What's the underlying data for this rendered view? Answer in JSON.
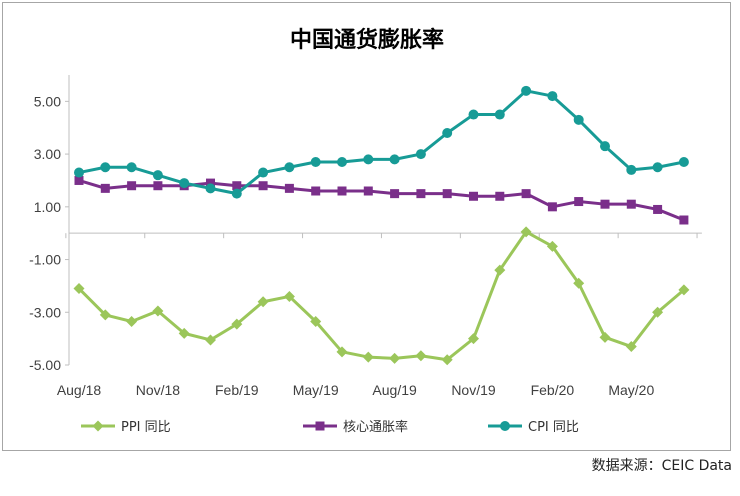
{
  "source": "数据来源：CEIC Data",
  "chart_data": {
    "type": "line",
    "title": "中国通货膨胀率",
    "xlabel": "",
    "ylabel": "",
    "ylim": [
      -5,
      6
    ],
    "yticks": [
      5,
      3,
      1,
      -1,
      -3,
      -5
    ],
    "ytick_labels": [
      "5.00",
      "3.00",
      "1.00",
      "-1.00",
      "-3.00",
      "-5.00"
    ],
    "xtick_labels": [
      "Aug/18",
      "Nov/18",
      "Feb/19",
      "May/19",
      "Aug/19",
      "Nov/19",
      "Feb/20",
      "May/20"
    ],
    "x": [
      "Aug/18",
      "Sep/18",
      "Oct/18",
      "Nov/18",
      "Dec/18",
      "Jan/19",
      "Feb/19",
      "Mar/19",
      "Apr/19",
      "May/19",
      "Jun/19",
      "Jul/19",
      "Aug/19",
      "Sep/19",
      "Oct/19",
      "Nov/19",
      "Dec/19",
      "Jan/20",
      "Feb/20",
      "Mar/20",
      "Apr/20",
      "May/20",
      "Jun/20",
      "Jul/20"
    ],
    "legend_position": "bottom",
    "series": [
      {
        "name": "PPI 同比",
        "color": "#9bc65a",
        "marker": "diamond",
        "values": [
          -2.1,
          -3.1,
          -3.35,
          -2.95,
          -3.8,
          -4.05,
          -3.45,
          -2.6,
          -2.4,
          -3.35,
          -4.5,
          -4.7,
          -4.75,
          -4.65,
          -4.8,
          -4.0,
          -1.4,
          0.05,
          -0.5,
          -1.9,
          -3.95,
          -4.3,
          -3.0,
          -2.15
        ]
      },
      {
        "name": "核心通胀率",
        "color": "#7a2f8a",
        "marker": "square",
        "values": [
          2.0,
          1.7,
          1.8,
          1.8,
          1.8,
          1.9,
          1.8,
          1.8,
          1.7,
          1.6,
          1.6,
          1.6,
          1.5,
          1.5,
          1.5,
          1.4,
          1.4,
          1.5,
          1.0,
          1.2,
          1.1,
          1.1,
          0.9,
          0.5
        ]
      },
      {
        "name": "CPI 同比",
        "color": "#179b96",
        "marker": "circle",
        "values": [
          2.3,
          2.5,
          2.5,
          2.2,
          1.9,
          1.7,
          1.5,
          2.3,
          2.5,
          2.7,
          2.7,
          2.8,
          2.8,
          3.0,
          3.8,
          4.5,
          4.5,
          5.4,
          5.2,
          4.3,
          3.3,
          2.4,
          2.5,
          2.7
        ]
      }
    ]
  }
}
